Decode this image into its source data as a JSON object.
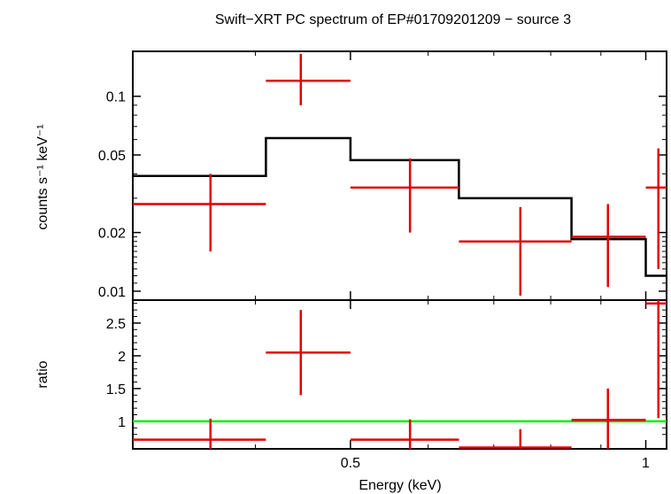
{
  "chart_data": [
    {
      "type": "scatter",
      "title": "Swift−XRT PC spectrum of EP#01709201209 − source 3",
      "ylabel": "counts s⁻¹ keV⁻¹",
      "xscale": "log",
      "yscale": "log",
      "xlim": [
        0.3,
        1.05
      ],
      "ylim": [
        0.009,
        0.17
      ],
      "yticks": [
        0.01,
        0.02,
        0.05,
        0.1
      ],
      "ytick_labels": [
        "0.01",
        "0.02",
        "0.05",
        "0.1"
      ],
      "data_color": "#e00000",
      "model_color": "#000000",
      "data": [
        {
          "xlo": 0.3,
          "xhi": 0.41,
          "x": 0.36,
          "y": 0.028,
          "ylo": 0.016,
          "yhi": 0.04
        },
        {
          "xlo": 0.41,
          "xhi": 0.5,
          "x": 0.445,
          "y": 0.12,
          "ylo": 0.09,
          "yhi": 0.165
        },
        {
          "xlo": 0.5,
          "xhi": 0.645,
          "x": 0.575,
          "y": 0.034,
          "ylo": 0.02,
          "yhi": 0.048
        },
        {
          "xlo": 0.645,
          "xhi": 0.84,
          "x": 0.745,
          "y": 0.018,
          "ylo": 0.0095,
          "yhi": 0.027
        },
        {
          "xlo": 0.84,
          "xhi": 1.0,
          "x": 0.915,
          "y": 0.019,
          "ylo": 0.0105,
          "yhi": 0.028
        },
        {
          "xlo": 1.0,
          "xhi": 1.05,
          "x": 1.03,
          "y": 0.034,
          "ylo": 0.013,
          "yhi": 0.054
        }
      ],
      "model": [
        {
          "xlo": 0.3,
          "xhi": 0.41,
          "y": 0.039
        },
        {
          "xlo": 0.41,
          "xhi": 0.5,
          "y": 0.061
        },
        {
          "xlo": 0.5,
          "xhi": 0.645,
          "y": 0.047
        },
        {
          "xlo": 0.645,
          "xhi": 0.84,
          "y": 0.03
        },
        {
          "xlo": 0.84,
          "xhi": 1.0,
          "y": 0.0185
        },
        {
          "xlo": 1.0,
          "xhi": 1.05,
          "y": 0.012
        }
      ]
    },
    {
      "type": "scatter",
      "xlabel": "Energy (keV)",
      "ylabel": "ratio",
      "xscale": "log",
      "xlim": [
        0.3,
        1.05
      ],
      "ylim": [
        0.58,
        2.85
      ],
      "yticks": [
        1,
        1.5,
        2,
        2.5
      ],
      "ytick_labels": [
        "1",
        "1.5",
        "2",
        "2.5"
      ],
      "xticks": [
        0.5,
        1
      ],
      "xtick_labels": [
        "0.5",
        "1"
      ],
      "reference_line": 1,
      "reference_color": "#00ee00",
      "data_color": "#e00000",
      "data": [
        {
          "xlo": 0.3,
          "xhi": 0.41,
          "x": 0.36,
          "y": 0.72,
          "ylo": 0.58,
          "yhi": 1.04
        },
        {
          "xlo": 0.41,
          "xhi": 0.5,
          "x": 0.445,
          "y": 2.05,
          "ylo": 1.4,
          "yhi": 2.7
        },
        {
          "xlo": 0.5,
          "xhi": 0.645,
          "x": 0.575,
          "y": 0.72,
          "ylo": 0.58,
          "yhi": 1.03
        },
        {
          "xlo": 0.645,
          "xhi": 0.84,
          "x": 0.745,
          "y": 0.6,
          "ylo": 0.58,
          "yhi": 0.88
        },
        {
          "xlo": 0.84,
          "xhi": 1.0,
          "x": 0.915,
          "y": 1.02,
          "ylo": 0.58,
          "yhi": 1.5
        },
        {
          "xlo": 1.0,
          "xhi": 1.05,
          "x": 1.03,
          "y": 2.8,
          "ylo": 1.05,
          "yhi": 2.85
        }
      ]
    }
  ]
}
